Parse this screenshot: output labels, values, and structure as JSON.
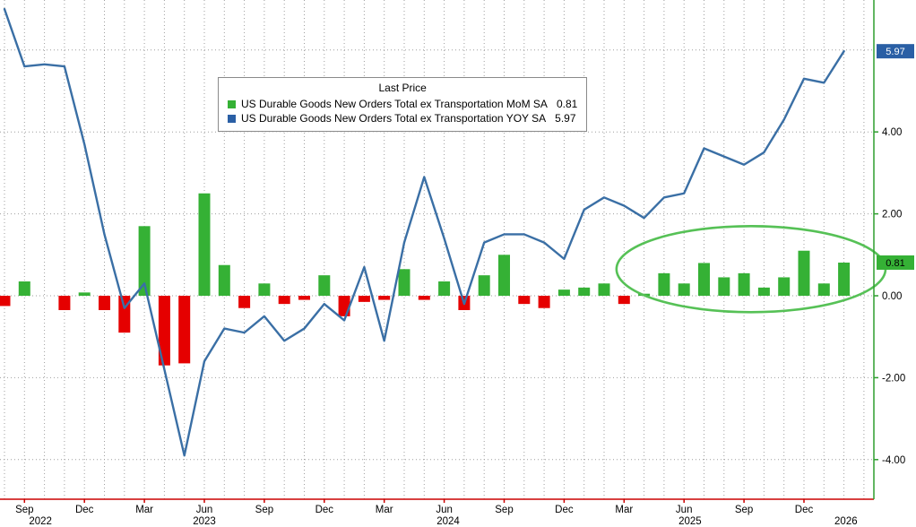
{
  "legend": {
    "title": "Last Price",
    "series": [
      {
        "label": "US Durable Goods New Orders Total ex Transportation MoM SA",
        "value": "0.81",
        "color": "#35b135"
      },
      {
        "label": "US Durable Goods New Orders Total ex Transportation YOY SA",
        "value": "5.97",
        "color": "#2a5fa5"
      }
    ]
  },
  "axis": {
    "y_ticks": [
      {
        "label": "4.00",
        "value": 4
      },
      {
        "label": "2.00",
        "value": 2
      },
      {
        "label": "0.00",
        "value": 0
      },
      {
        "label": "-2.00",
        "value": -2
      },
      {
        "label": "-4.00",
        "value": -4
      }
    ],
    "badges": [
      {
        "label": "5.97",
        "value": 5.97,
        "bg": "#2a5fa5",
        "fg": "#ffffff"
      },
      {
        "label": "0.81",
        "value": 0.81,
        "bg": "#35b135",
        "fg": "#000000"
      }
    ],
    "x_ticks": [
      {
        "label": "Sep",
        "index": 1
      },
      {
        "label": "Dec",
        "index": 4
      },
      {
        "label": "Mar",
        "index": 7
      },
      {
        "label": "Jun",
        "index": 10
      },
      {
        "label": "Sep",
        "index": 13
      },
      {
        "label": "Dec",
        "index": 16
      },
      {
        "label": "Mar",
        "index": 19
      },
      {
        "label": "Jun",
        "index": 22
      },
      {
        "label": "Sep",
        "index": 25
      },
      {
        "label": "Dec",
        "index": 28
      },
      {
        "label": "Mar",
        "index": 31
      },
      {
        "label": "Jun",
        "index": 34
      },
      {
        "label": "Sep",
        "index": 37
      },
      {
        "label": "Dec",
        "index": 40
      }
    ],
    "years": [
      {
        "label": "2022",
        "index": 1.8
      },
      {
        "label": "2023",
        "index": 10
      },
      {
        "label": "2024",
        "index": 22.2
      },
      {
        "label": "2025",
        "index": 34.3
      },
      {
        "label": "2026",
        "index": 42.1
      }
    ]
  },
  "chart_data": {
    "type": "bar+line",
    "title": "US Durable Goods New Orders Total ex Transportation",
    "months": [
      "Aug 2022",
      "Sep 2022",
      "Oct 2022",
      "Nov 2022",
      "Dec 2022",
      "Jan 2023",
      "Feb 2023",
      "Mar 2023",
      "Apr 2023",
      "May 2023",
      "Jun 2023",
      "Jul 2023",
      "Aug 2023",
      "Sep 2023",
      "Oct 2023",
      "Nov 2023",
      "Dec 2023",
      "Jan 2024",
      "Feb 2024",
      "Mar 2024",
      "Apr 2024",
      "May 2024",
      "Jun 2024",
      "Jul 2024",
      "Aug 2024",
      "Sep 2024",
      "Oct 2024",
      "Nov 2024",
      "Dec 2024",
      "Jan 2025",
      "Feb 2025",
      "Mar 2025",
      "Apr 2025",
      "May 2025",
      "Jun 2025",
      "Jul 2025",
      "Aug 2025",
      "Sep 2025",
      "Oct 2025",
      "Nov 2025",
      "Dec 2025",
      "Jan 2026",
      "Feb 2026"
    ],
    "series": [
      {
        "name": "US Durable Goods New Orders Total ex Transportation MoM SA",
        "type": "bar",
        "last": 0.81,
        "values": [
          -0.25,
          0.35,
          0,
          -0.35,
          0.08,
          -0.35,
          -0.9,
          1.7,
          -1.7,
          -1.65,
          2.5,
          0.75,
          -0.3,
          0.3,
          -0.2,
          -0.1,
          0.5,
          -0.5,
          -0.15,
          -0.1,
          0.65,
          -0.1,
          0.35,
          -0.35,
          0.5,
          1.0,
          -0.2,
          -0.3,
          0.15,
          0.2,
          0.3,
          -0.2,
          0.05,
          0.55,
          0.3,
          0.8,
          0.45,
          0.55,
          0.2,
          0.45,
          1.1,
          0.3,
          0.81
        ]
      },
      {
        "name": "US Durable Goods New Orders Total ex Transportation YOY SA",
        "type": "line",
        "last": 5.97,
        "values": [
          7.0,
          5.6,
          5.65,
          5.6,
          3.7,
          1.5,
          -0.3,
          0.3,
          -1.8,
          -3.9,
          -1.6,
          -0.8,
          -0.9,
          -0.5,
          -1.1,
          -0.8,
          -0.2,
          -0.6,
          0.7,
          -1.1,
          1.3,
          2.9,
          1.4,
          -0.2,
          1.3,
          1.5,
          1.5,
          1.3,
          0.9,
          2.1,
          2.4,
          2.2,
          1.9,
          2.4,
          2.5,
          3.6,
          3.4,
          3.2,
          3.5,
          4.3,
          5.3,
          5.2,
          5.97
        ]
      }
    ],
    "ylim": [
      -5,
      7.3
    ],
    "y_gridlines": [
      6,
      4,
      2,
      0,
      -2,
      -4
    ],
    "grid": true,
    "legend_position": "top-center-inset",
    "annotation_ellipse": {
      "cx_index": 37.35,
      "cy_value": 0.65,
      "rx_months": 6.73,
      "ry_value": 1.05,
      "color": "#56c156"
    },
    "style": {
      "pos_color": "#35b135",
      "neg_color": "#e50000",
      "line_color": "#3a6fa5",
      "grid_color": "#9e9e9e",
      "x_axis_color": "#cc0000",
      "y_axis_color": "#2e9e2e"
    }
  }
}
